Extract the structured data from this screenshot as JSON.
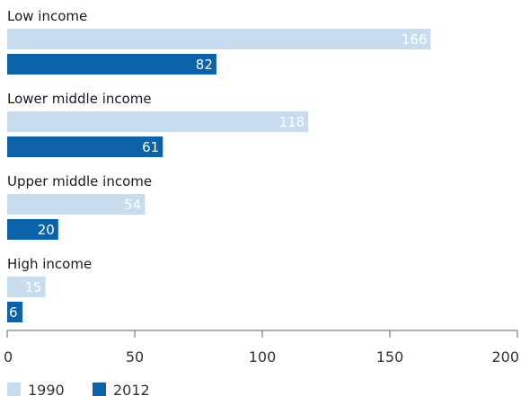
{
  "chart_data": {
    "type": "bar",
    "orientation": "horizontal",
    "categories": [
      "Low income",
      "Lower middle income",
      "Upper middle income",
      "High income"
    ],
    "series": [
      {
        "name": "1990",
        "values": [
          166,
          118,
          54,
          15
        ],
        "color": "#c7dced"
      },
      {
        "name": "2012",
        "values": [
          82,
          61,
          20,
          6
        ],
        "color": "#0b62a8"
      }
    ],
    "xlim": [
      0,
      200
    ],
    "xticks": [
      0,
      50,
      100,
      150,
      200
    ],
    "grid": false,
    "legend_position": "bottom-left"
  }
}
